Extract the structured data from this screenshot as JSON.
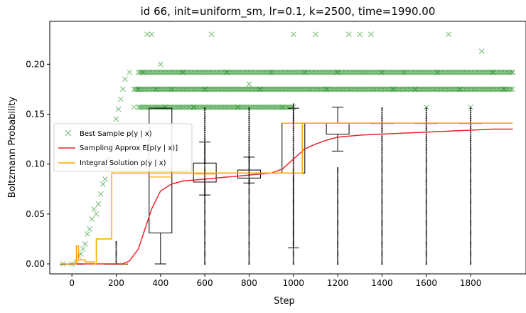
{
  "chart_data": {
    "type": "scatter",
    "title": "id 66, init=uniform_sm, lr=0.1, k=2500, time=1990.00",
    "xlabel": "Step",
    "ylabel": "Boltzmann Probability",
    "xlim": [
      -100,
      2050
    ],
    "ylim": [
      -0.01,
      0.243
    ],
    "xticks": [
      0,
      200,
      400,
      600,
      800,
      1000,
      1200,
      1400,
      1600,
      1800
    ],
    "xtick_labels": [
      "0",
      "200",
      "400",
      "600",
      "800",
      "1000",
      "1200",
      "1400",
      "1600",
      "1800"
    ],
    "yticks": [
      0.0,
      0.05,
      0.1,
      0.15,
      0.2
    ],
    "ytick_labels": [
      "0.00",
      "0.05",
      "0.10",
      "0.15",
      "0.20"
    ],
    "grid": false,
    "legend_position": "center-left",
    "legend": [
      {
        "label": "Best Sample p(y | x)",
        "marker": "x",
        "color": "#008000"
      },
      {
        "label": "Sampling Approx E[p(y | x)]",
        "color": "#e8262a"
      },
      {
        "label": "Integral Solution p(y | x)",
        "color": "#ffa500"
      }
    ],
    "series": [
      {
        "name": "Best Sample p(y | x)",
        "kind": "scatter",
        "color": "#008000",
        "points": [
          [
            -40,
            0.0
          ],
          [
            0,
            0.0
          ],
          [
            20,
            0.002
          ],
          [
            30,
            0.008
          ],
          [
            40,
            0.01
          ],
          [
            50,
            0.015
          ],
          [
            60,
            0.02
          ],
          [
            70,
            0.03
          ],
          [
            80,
            0.035
          ],
          [
            90,
            0.045
          ],
          [
            100,
            0.055
          ],
          [
            110,
            0.05
          ],
          [
            120,
            0.06
          ],
          [
            130,
            0.07
          ],
          [
            140,
            0.08
          ],
          [
            150,
            0.085
          ],
          [
            160,
            0.095
          ],
          [
            170,
            0.105
          ],
          [
            180,
            0.12
          ],
          [
            190,
            0.13
          ],
          [
            200,
            0.145
          ],
          [
            210,
            0.155
          ],
          [
            220,
            0.165
          ],
          [
            230,
            0.175
          ],
          [
            240,
            0.185
          ],
          [
            260,
            0.192
          ],
          [
            280,
            0.157
          ],
          [
            300,
            0.175
          ],
          [
            320,
            0.192
          ],
          [
            340,
            0.23
          ],
          [
            360,
            0.23
          ],
          [
            380,
            0.175
          ],
          [
            400,
            0.2
          ],
          [
            420,
            0.157
          ],
          [
            450,
            0.175
          ],
          [
            500,
            0.192
          ],
          [
            550,
            0.157
          ],
          [
            600,
            0.175
          ],
          [
            630,
            0.23
          ],
          [
            700,
            0.192
          ],
          [
            750,
            0.157
          ],
          [
            800,
            0.18
          ],
          [
            850,
            0.175
          ],
          [
            900,
            0.192
          ],
          [
            950,
            0.157
          ],
          [
            1000,
            0.23
          ],
          [
            1050,
            0.192
          ],
          [
            1100,
            0.23
          ],
          [
            1150,
            0.175
          ],
          [
            1200,
            0.192
          ],
          [
            1250,
            0.23
          ],
          [
            1300,
            0.23
          ],
          [
            1350,
            0.23
          ],
          [
            1400,
            0.192
          ],
          [
            1450,
            0.175
          ],
          [
            1500,
            0.192
          ],
          [
            1550,
            0.175
          ],
          [
            1600,
            0.157
          ],
          [
            1650,
            0.192
          ],
          [
            1700,
            0.23
          ],
          [
            1750,
            0.175
          ],
          [
            1800,
            0.157
          ],
          [
            1850,
            0.213
          ],
          [
            1900,
            0.192
          ],
          [
            1950,
            0.175
          ],
          [
            1990,
            0.192
          ]
        ],
        "bands": [
          {
            "y": 0.192,
            "x": [
              300,
              1990
            ]
          },
          {
            "y": 0.175,
            "x": [
              280,
              1990
            ]
          },
          {
            "y": 0.157,
            "x": [
              300,
              1000
            ]
          }
        ]
      },
      {
        "name": "Sampling Approx E[p(y | x)]",
        "kind": "line",
        "color": "#e8262a",
        "x": [
          0,
          150,
          230,
          260,
          300,
          330,
          360,
          400,
          450,
          500,
          600,
          700,
          800,
          900,
          950,
          1000,
          1050,
          1100,
          1150,
          1200,
          1300,
          1400,
          1500,
          1600,
          1700,
          1800,
          1900,
          1990
        ],
        "y": [
          0.0,
          0.0,
          0.0,
          0.003,
          0.015,
          0.035,
          0.055,
          0.073,
          0.08,
          0.083,
          0.085,
          0.087,
          0.089,
          0.091,
          0.095,
          0.105,
          0.115,
          0.12,
          0.124,
          0.127,
          0.129,
          0.13,
          0.131,
          0.132,
          0.133,
          0.134,
          0.135,
          0.135
        ]
      },
      {
        "name": "Integral Solution p(y | x)",
        "kind": "step",
        "color": "#ffa500",
        "x": [
          -40,
          10,
          20,
          30,
          60,
          100,
          110,
          160,
          180,
          250,
          1000,
          1040,
          1990
        ],
        "y": [
          0.0,
          0.0,
          0.018,
          0.004,
          0.002,
          0.0,
          0.025,
          0.025,
          0.091,
          0.091,
          0.091,
          0.141,
          0.141
        ]
      },
      {
        "name": "",
        "kind": "boxplot",
        "color": "#000000",
        "median_color": "#ffa500",
        "boxes": [
          {
            "x": 0,
            "whislo": 0.0,
            "q1": 0.0,
            "med": 0.0,
            "q3": 0.0,
            "whishi": 0.0,
            "fliers": [
              0.0,
              0.0,
              0.0
            ]
          },
          {
            "x": 200,
            "whislo": 0.0,
            "q1": 0.0,
            "med": 0.0,
            "q3": 0.0,
            "whishi": 0.0,
            "fliers": [
              0.0,
              0.012,
              0.022
            ]
          },
          {
            "x": 400,
            "whislo": 0.0,
            "q1": 0.031,
            "med": 0.087,
            "q3": 0.156,
            "whishi": 0.156,
            "fliers": []
          },
          {
            "x": 600,
            "whislo": 0.069,
            "q1": 0.082,
            "med": 0.09,
            "q3": 0.101,
            "whishi": 0.122,
            "fliers": [
              0.0,
              0.156
            ]
          },
          {
            "x": 800,
            "whislo": 0.081,
            "q1": 0.086,
            "med": 0.091,
            "q3": 0.094,
            "whishi": 0.107,
            "fliers": [
              0.0,
              0.156
            ]
          },
          {
            "x": 1000,
            "whislo": 0.016,
            "q1": 0.091,
            "med": 0.141,
            "q3": 0.141,
            "whishi": 0.156,
            "fliers": [
              0.0,
              0.16
            ]
          },
          {
            "x": 1200,
            "whislo": 0.113,
            "q1": 0.13,
            "med": 0.141,
            "q3": 0.141,
            "whishi": 0.157,
            "fliers": [
              0.0,
              0.097
            ]
          },
          {
            "x": 1400,
            "whislo": 0.141,
            "q1": 0.141,
            "med": 0.141,
            "q3": 0.141,
            "whishi": 0.141,
            "fliers": [
              0.0,
              0.157
            ]
          },
          {
            "x": 1600,
            "whislo": 0.141,
            "q1": 0.141,
            "med": 0.141,
            "q3": 0.141,
            "whishi": 0.141,
            "fliers": [
              0.0,
              0.157
            ]
          },
          {
            "x": 1800,
            "whislo": 0.141,
            "q1": 0.141,
            "med": 0.141,
            "q3": 0.141,
            "whishi": 0.141,
            "fliers": [
              0.0,
              0.157
            ]
          }
        ]
      }
    ]
  }
}
